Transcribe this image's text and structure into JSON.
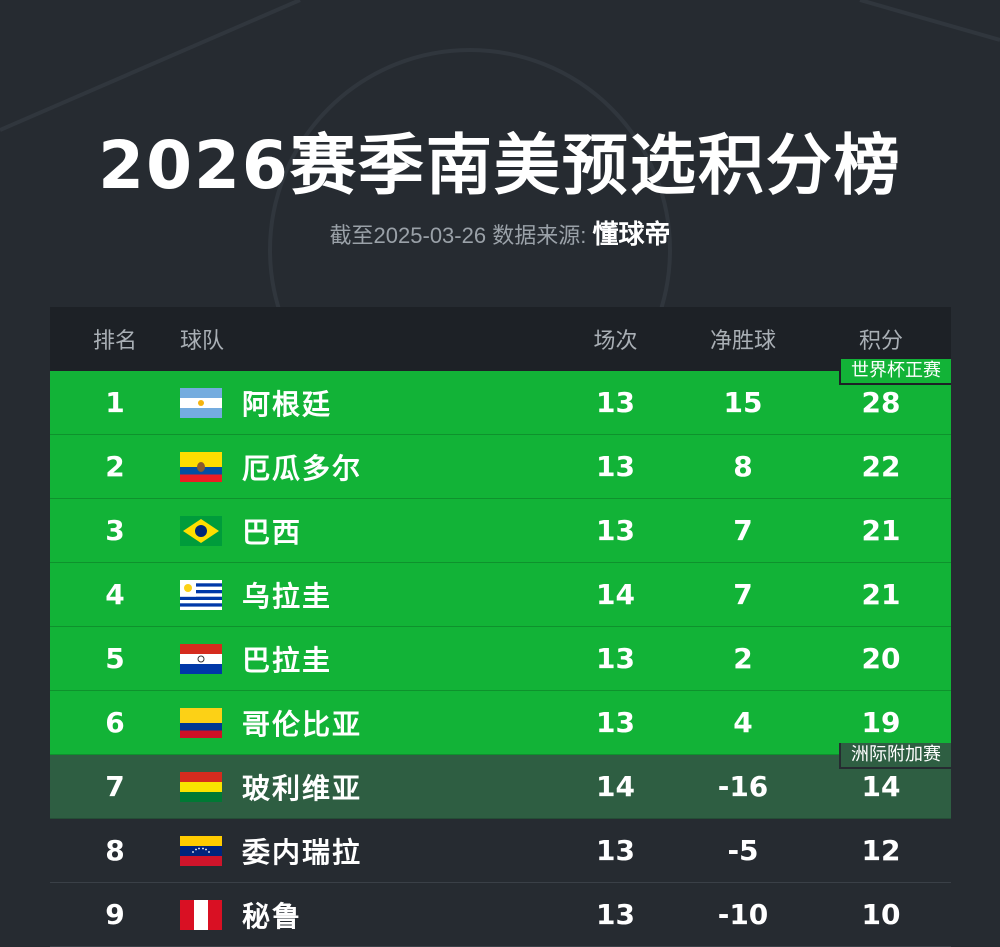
{
  "title": "2026赛季南美预选积分榜",
  "subtitle": {
    "text": "截至2025-03-26 数据来源:",
    "brand": "懂球帝"
  },
  "headers": {
    "rank": "排名",
    "team": "球队",
    "played": "场次",
    "gd": "净胜球",
    "points": "积分"
  },
  "tags": {
    "qualify": "世界杯正赛",
    "playoff": "洲际附加赛"
  },
  "colors": {
    "qualify_row": "#12b337",
    "playoff_row": "#2e5e42",
    "background": "#262b31"
  },
  "rows": [
    {
      "rank": "1",
      "team": "阿根廷",
      "flag": "argentina-flag",
      "played": "13",
      "gd": "15",
      "points": "28"
    },
    {
      "rank": "2",
      "team": "厄瓜多尔",
      "flag": "ecuador-flag",
      "played": "13",
      "gd": "8",
      "points": "22"
    },
    {
      "rank": "3",
      "team": "巴西",
      "flag": "brazil-flag",
      "played": "13",
      "gd": "7",
      "points": "21"
    },
    {
      "rank": "4",
      "team": "乌拉圭",
      "flag": "uruguay-flag",
      "played": "14",
      "gd": "7",
      "points": "21"
    },
    {
      "rank": "5",
      "team": "巴拉圭",
      "flag": "paraguay-flag",
      "played": "13",
      "gd": "2",
      "points": "20"
    },
    {
      "rank": "6",
      "team": "哥伦比亚",
      "flag": "colombia-flag",
      "played": "13",
      "gd": "4",
      "points": "19"
    },
    {
      "rank": "7",
      "team": "玻利维亚",
      "flag": "bolivia-flag",
      "played": "14",
      "gd": "-16",
      "points": "14"
    },
    {
      "rank": "8",
      "team": "委内瑞拉",
      "flag": "venezuela-flag",
      "played": "13",
      "gd": "-5",
      "points": "12"
    },
    {
      "rank": "9",
      "team": "秘鲁",
      "flag": "peru-flag",
      "played": "13",
      "gd": "-10",
      "points": "10"
    }
  ]
}
